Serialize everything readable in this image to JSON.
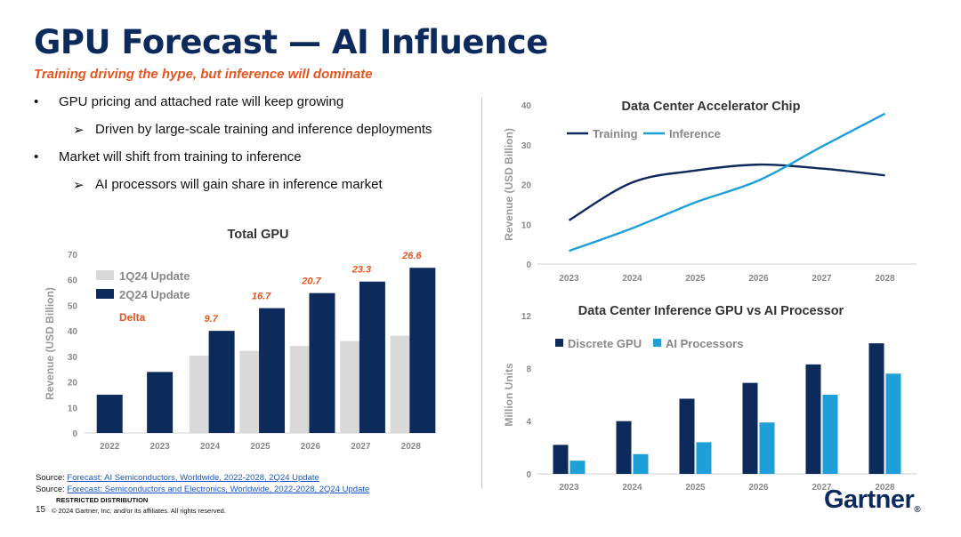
{
  "header": {
    "title": "GPU Forecast — AI Influence",
    "subtitle": "Training driving the hype, but inference will dominate"
  },
  "bullets": [
    {
      "level": 1,
      "marker": "•",
      "text": "GPU pricing and attached rate will keep growing"
    },
    {
      "level": 2,
      "marker": "➢",
      "text": "Driven by large-scale training and inference deployments"
    },
    {
      "level": 1,
      "marker": "•",
      "text": "Market will shift from training to inference"
    },
    {
      "level": 2,
      "marker": "➢",
      "text": "AI processors will gain share in inference market"
    }
  ],
  "footer": {
    "source_prefix": "Source: ",
    "source1": "Forecast: AI Semiconductors, Worldwide, 2022-2028, 2Q24 Update",
    "source2": "Forecast: Semiconductors and Electronics, Worldwide, 2022-2028, 2Q24 Update",
    "restricted": "RESTRICTED DISTRIBUTION",
    "page": "15",
    "copyright": "© 2024 Gartner, Inc. and/or its affiliates. All rights reserved.",
    "logo": "Gartner",
    "logo_mark": "®"
  },
  "colors": {
    "navy": "#0d2a5c",
    "gray": "#d9d9d9",
    "blue": "#1e9fd8",
    "orange": "#e8541e"
  },
  "chart_data": [
    {
      "id": "total-gpu",
      "type": "bar",
      "title": "Total GPU",
      "ylabel": "Revenue (USD Billion)",
      "ylim": [
        0,
        70
      ],
      "yticks": [
        0,
        10,
        20,
        30,
        40,
        50,
        60,
        70
      ],
      "categories": [
        "2022",
        "2023",
        "2024",
        "2025",
        "2026",
        "2027",
        "2028"
      ],
      "series": [
        {
          "name": "1Q24 Update",
          "values": [
            null,
            null,
            30.3,
            32.2,
            34.1,
            36.0,
            38.1
          ]
        },
        {
          "name": "2Q24 Update",
          "values": [
            15.0,
            23.9,
            40.0,
            48.9,
            54.8,
            59.3,
            64.7
          ]
        }
      ],
      "delta_legend": "Delta",
      "deltas": [
        null,
        null,
        "9.7",
        "16.7",
        "20.7",
        "23.3",
        "26.6"
      ],
      "legend_position": "top-left"
    },
    {
      "id": "accelerator-chip",
      "type": "line",
      "title": "Data Center Accelerator Chip",
      "ylabel": "Revenue (USD Billion)",
      "ylim": [
        0,
        40
      ],
      "yticks": [
        0,
        10,
        20,
        30,
        40
      ],
      "categories": [
        "2023",
        "2024",
        "2025",
        "2026",
        "2027",
        "2028"
      ],
      "series": [
        {
          "name": "Training",
          "values": [
            11.0,
            20.5,
            23.5,
            25.0,
            24.0,
            22.3
          ]
        },
        {
          "name": "Inference",
          "values": [
            3.3,
            9.0,
            15.5,
            21.0,
            29.5,
            37.8
          ]
        }
      ],
      "legend_position": "top-left"
    },
    {
      "id": "inference-gpu-vs-ai",
      "type": "bar",
      "title": "Data Center Inference GPU vs AI Processor",
      "ylabel": "Million Units",
      "ylim": [
        0,
        12
      ],
      "yticks": [
        0,
        4,
        8,
        12
      ],
      "categories": [
        "2023",
        "2024",
        "2025",
        "2026",
        "2027",
        "2028"
      ],
      "series": [
        {
          "name": "Discrete GPU",
          "values": [
            2.2,
            4.0,
            5.7,
            6.9,
            8.3,
            9.9
          ]
        },
        {
          "name": "AI Processors",
          "values": [
            1.0,
            1.5,
            2.4,
            3.9,
            6.0,
            7.6
          ]
        }
      ],
      "legend_position": "top-left"
    }
  ]
}
